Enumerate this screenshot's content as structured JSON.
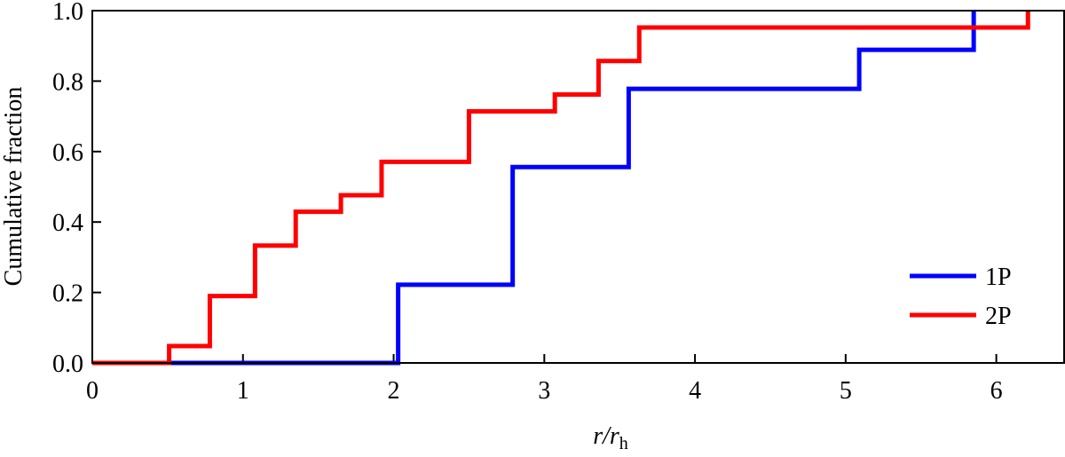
{
  "chart_data": {
    "type": "step",
    "xlabel": [
      "r/r",
      "h"
    ],
    "ylabel": "Cumulative fraction",
    "xlim": [
      0,
      6.45
    ],
    "ylim": [
      0,
      1.0
    ],
    "xticks": [
      0,
      1,
      2,
      3,
      4,
      5,
      6
    ],
    "yticks": [
      {
        "value": 0,
        "label": "0.0"
      },
      0.2,
      0.4,
      0.6,
      0.8,
      {
        "value": 1,
        "label": "1.0"
      }
    ],
    "legend": "lower right",
    "series": [
      {
        "name": "1P",
        "color": "#0000ff",
        "x": [
          0,
          2.03,
          2.79,
          3.56,
          5.09,
          5.85
        ],
        "values": [
          0,
          0.222,
          0.556,
          0.778,
          0.889,
          1.0
        ]
      },
      {
        "name": "2P",
        "color": "#ff0000",
        "x": [
          0,
          0.51,
          0.78,
          1.08,
          1.35,
          1.65,
          1.92,
          2.5,
          3.07,
          3.36,
          3.63,
          6.21
        ],
        "values": [
          0,
          0.048,
          0.19,
          0.333,
          0.429,
          0.476,
          0.571,
          0.714,
          0.762,
          0.857,
          0.952,
          1.0
        ]
      }
    ]
  }
}
